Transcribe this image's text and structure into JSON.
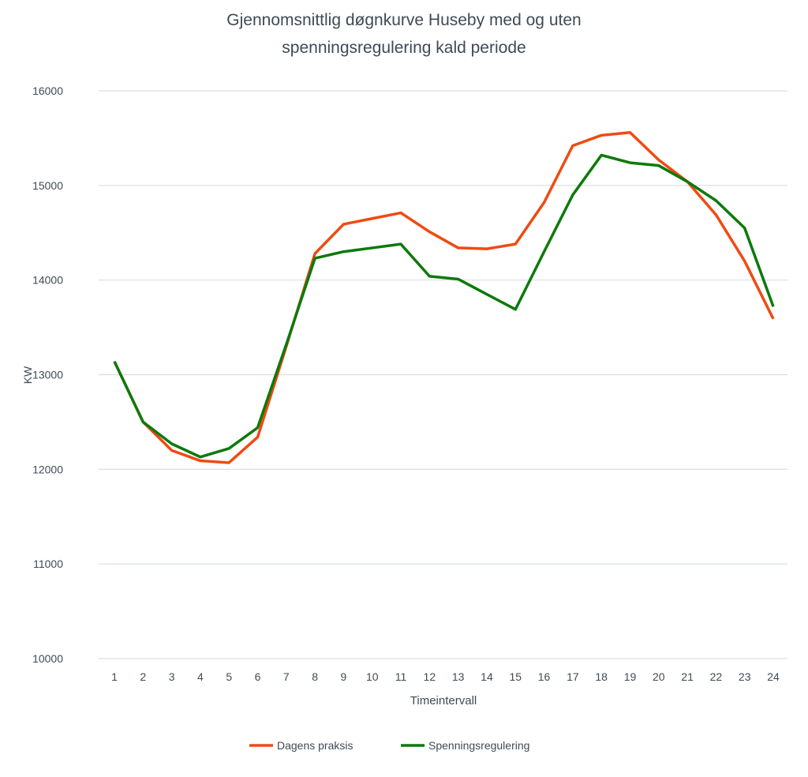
{
  "chart_data": {
    "type": "line",
    "title_lines": [
      "Gjennomsnittlig døgnkurve Huseby med og uten",
      "spenningsregulering kald periode"
    ],
    "xlabel": "Timeintervall",
    "ylabel": "KW",
    "ylim": [
      10000,
      16000
    ],
    "yticks": [
      10000,
      11000,
      12000,
      13000,
      14000,
      15000,
      16000
    ],
    "grid": true,
    "legend_position": "bottom",
    "x": [
      1,
      2,
      3,
      4,
      5,
      6,
      7,
      8,
      9,
      10,
      11,
      12,
      13,
      14,
      15,
      16,
      17,
      18,
      19,
      20,
      21,
      22,
      23,
      24
    ],
    "series": [
      {
        "name": "Dagens praksis",
        "color": "#f04a12",
        "values": [
          13140,
          12500,
          12200,
          12090,
          12070,
          12340,
          13300,
          14280,
          14590,
          14650,
          14710,
          14510,
          14340,
          14330,
          14380,
          14820,
          15420,
          15530,
          15560,
          15270,
          15040,
          14690,
          14200,
          13590
        ]
      },
      {
        "name": "Spenningsregulering",
        "color": "#0b7a0b",
        "values": [
          13140,
          12500,
          12270,
          12130,
          12220,
          12440,
          13320,
          14230,
          14300,
          14340,
          14380,
          14040,
          14010,
          13850,
          13690,
          14300,
          14900,
          15320,
          15240,
          15210,
          15040,
          14840,
          14550,
          13720
        ]
      }
    ]
  }
}
